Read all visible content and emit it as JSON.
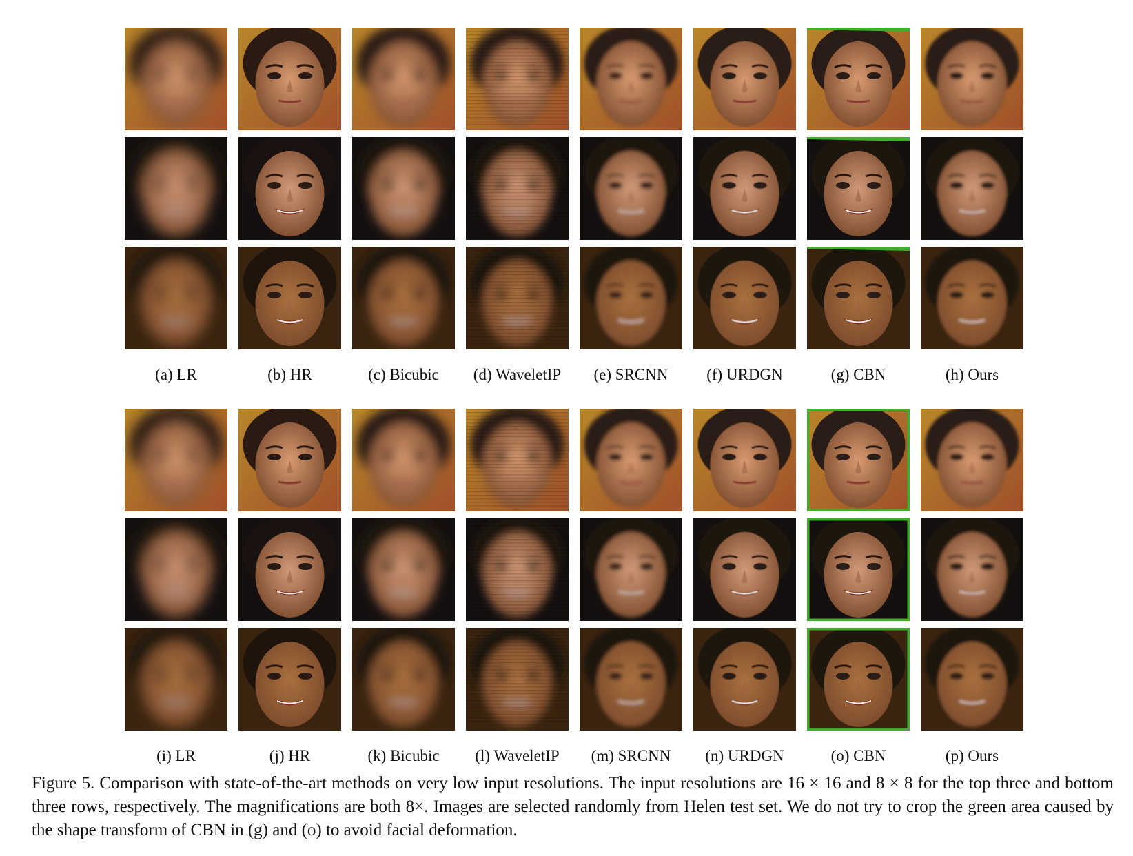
{
  "figure": {
    "top_labels": [
      "(a)  LR",
      "(b)  HR",
      "(c)  Bicubic",
      "(d)  WaveletIP",
      "(e)  SRCNN",
      "(f)  URDGN",
      "(g)  CBN",
      "(h)  Ours"
    ],
    "bottom_labels": [
      "(i)  LR",
      "(j)  HR",
      "(k)  Bicubic",
      "(l)  WaveletIP",
      "(m)  SRCNN",
      "(n)  URDGN",
      "(o)  CBN",
      "(p)  Ours"
    ],
    "caption": "Figure 5.  Comparison with state-of-the-art methods on very low input resolutions. The input resolutions are 16 × 16 and 8 × 8 for the top three and bottom three rows, respectively. The magnifications are both 8×. Images are selected randomly from Helen test set. We do not try to crop the green area caused by the shape transform of CBN in (g) and (o) to avoid facial deformation.",
    "colors": {
      "skin_warm": "#c9855a",
      "skin_tan": "#b07a50",
      "hair_dark": "#1c1410",
      "background_gold": "#b8862a",
      "cbn_green": "#3fae2a"
    }
  }
}
